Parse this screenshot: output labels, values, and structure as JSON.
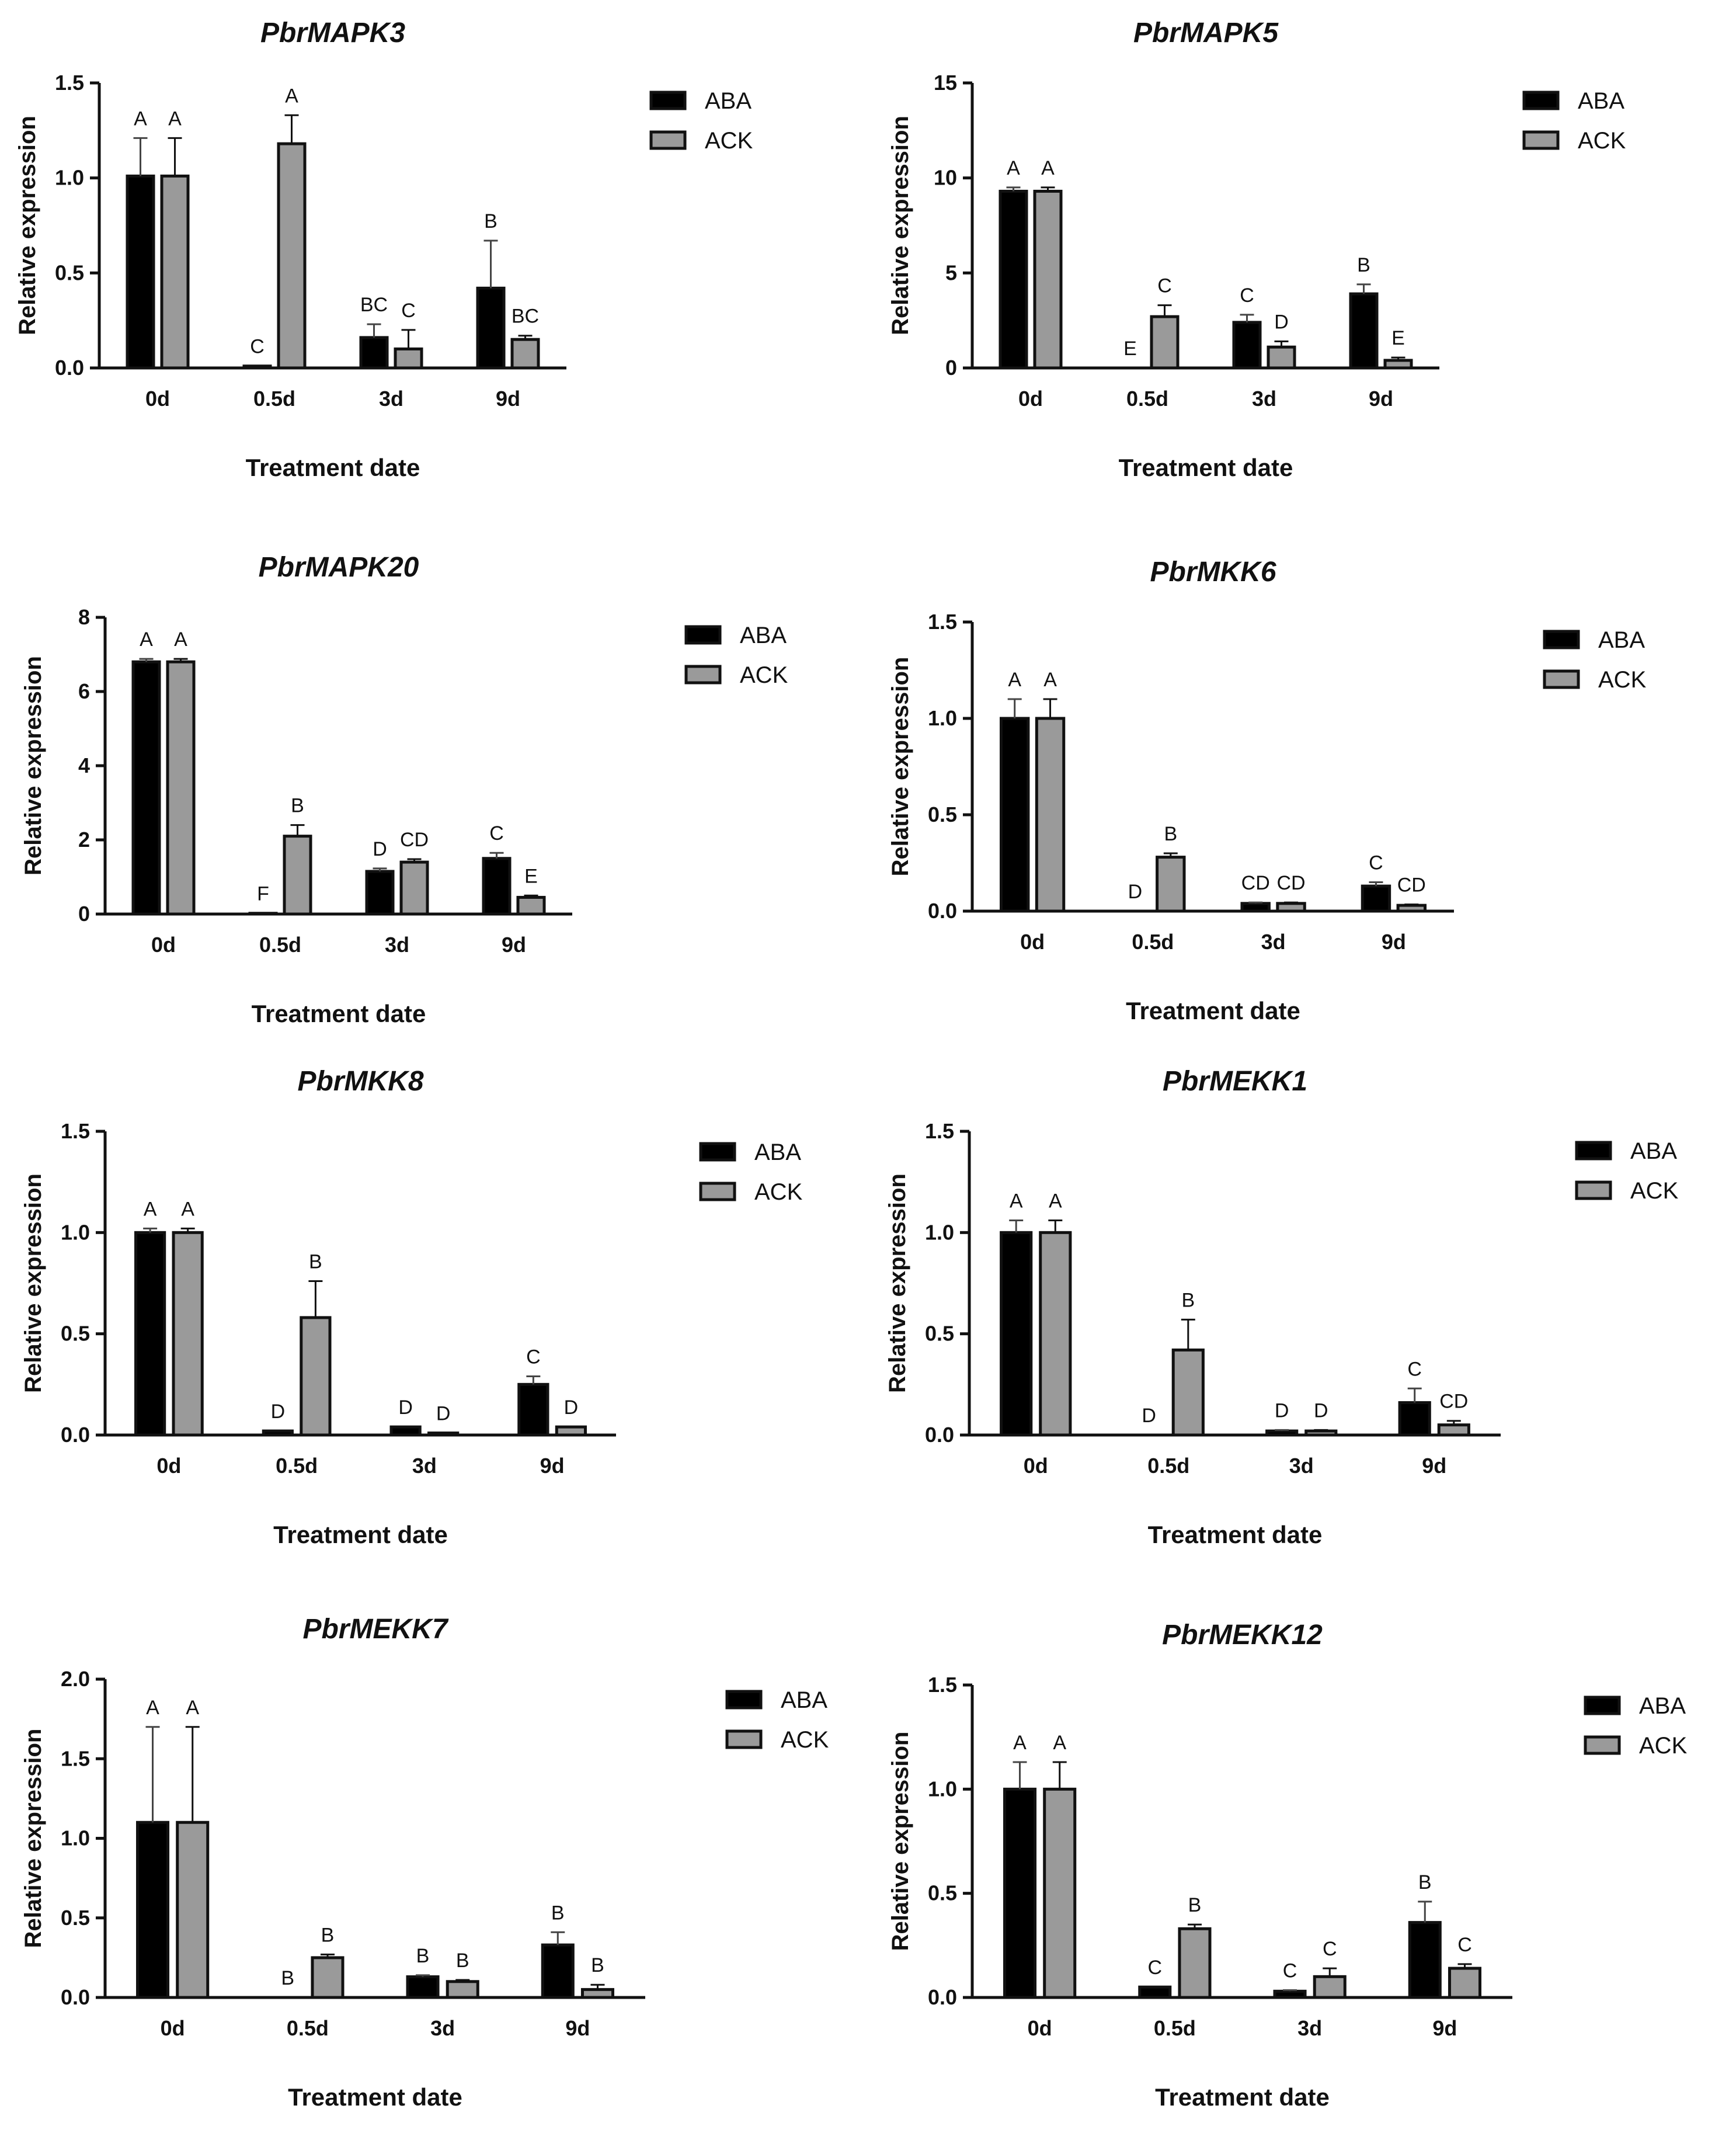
{
  "colors": {
    "aba": "#000000",
    "ack": "#9a9a9a",
    "axis": "#111111",
    "text": "#111111"
  },
  "chart_data": [
    {
      "type": "bar",
      "title": "PbrMAPK3",
      "xlabel": "Treatment date",
      "ylabel": "Relative expression",
      "categories": [
        "0d",
        "0.5d",
        "3d",
        "9d"
      ],
      "ylim": [
        0,
        1.5
      ],
      "yticks": [
        "0.0",
        "0.5",
        "1.0",
        "1.5"
      ],
      "series": [
        {
          "name": "ABA",
          "values": [
            1.01,
            0.01,
            0.16,
            0.42
          ],
          "errors": [
            0.2,
            0.0,
            0.07,
            0.25
          ],
          "letters": [
            "A",
            "C",
            "BC",
            "B"
          ]
        },
        {
          "name": "ACK",
          "values": [
            1.01,
            1.18,
            0.1,
            0.15
          ],
          "errors": [
            0.2,
            0.15,
            0.1,
            0.02
          ],
          "letters": [
            "A",
            "A",
            "C",
            "BC"
          ]
        }
      ],
      "legend": [
        "ABA",
        "ACK"
      ]
    },
    {
      "type": "bar",
      "title": "PbrMAPK5",
      "xlabel": "Treatment date",
      "ylabel": "Relative expression",
      "categories": [
        "0d",
        "0.5d",
        "3d",
        "9d"
      ],
      "ylim": [
        0,
        15
      ],
      "yticks": [
        "0",
        "5",
        "10",
        "15"
      ],
      "series": [
        {
          "name": "ABA",
          "values": [
            9.3,
            0.0,
            2.4,
            3.9
          ],
          "errors": [
            0.2,
            0.0,
            0.4,
            0.5
          ],
          "letters": [
            "A",
            "E",
            "C",
            "B"
          ]
        },
        {
          "name": "ACK",
          "values": [
            9.3,
            2.7,
            1.1,
            0.4
          ],
          "errors": [
            0.2,
            0.6,
            0.3,
            0.15
          ],
          "letters": [
            "A",
            "C",
            "D",
            "E"
          ]
        }
      ],
      "legend": [
        "ABA",
        "ACK"
      ]
    },
    {
      "type": "bar",
      "title": "PbrMAPK20",
      "xlabel": "Treatment date",
      "ylabel": "Relative expression",
      "categories": [
        "0d",
        "0.5d",
        "3d",
        "9d"
      ],
      "ylim": [
        0,
        8
      ],
      "yticks": [
        "0",
        "2",
        "4",
        "6",
        "8"
      ],
      "series": [
        {
          "name": "ABA",
          "values": [
            6.8,
            0.02,
            1.15,
            1.5
          ],
          "errors": [
            0.08,
            0.0,
            0.08,
            0.15
          ],
          "letters": [
            "A",
            "F",
            "D",
            "C"
          ]
        },
        {
          "name": "ACK",
          "values": [
            6.8,
            2.1,
            1.4,
            0.45
          ],
          "errors": [
            0.08,
            0.3,
            0.08,
            0.05
          ],
          "letters": [
            "A",
            "B",
            "CD",
            "E"
          ]
        }
      ],
      "legend": [
        "ABA",
        "ACK"
      ]
    },
    {
      "type": "bar",
      "title": "PbrMKK6",
      "xlabel": "Treatment date",
      "ylabel": "Relative expression",
      "categories": [
        "0d",
        "0.5d",
        "3d",
        "9d"
      ],
      "ylim": [
        0,
        1.5
      ],
      "yticks": [
        "0.0",
        "0.5",
        "1.0",
        "1.5"
      ],
      "series": [
        {
          "name": "ABA",
          "values": [
            1.0,
            0.0,
            0.04,
            0.13
          ],
          "errors": [
            0.1,
            0.0,
            0.005,
            0.02
          ],
          "letters": [
            "A",
            "D",
            "CD",
            "C"
          ]
        },
        {
          "name": "ACK",
          "values": [
            1.0,
            0.28,
            0.04,
            0.03
          ],
          "errors": [
            0.1,
            0.02,
            0.005,
            0.005
          ],
          "letters": [
            "A",
            "B",
            "CD",
            "CD"
          ]
        }
      ],
      "legend": [
        "ABA",
        "ACK"
      ]
    },
    {
      "type": "bar",
      "title": "PbrMKK8",
      "xlabel": "Treatment date",
      "ylabel": "Relative expression",
      "categories": [
        "0d",
        "0.5d",
        "3d",
        "9d"
      ],
      "ylim": [
        0,
        1.5
      ],
      "yticks": [
        "0.0",
        "0.5",
        "1.0",
        "1.5"
      ],
      "series": [
        {
          "name": "ABA",
          "values": [
            1.0,
            0.02,
            0.04,
            0.25
          ],
          "errors": [
            0.02,
            0.0,
            0.0,
            0.04
          ],
          "letters": [
            "A",
            "D",
            "D",
            "C"
          ]
        },
        {
          "name": "ACK",
          "values": [
            1.0,
            0.58,
            0.01,
            0.04
          ],
          "errors": [
            0.02,
            0.18,
            0.0,
            0.0
          ],
          "letters": [
            "A",
            "B",
            "D",
            "D"
          ]
        }
      ],
      "legend": [
        "ABA",
        "ACK"
      ]
    },
    {
      "type": "bar",
      "title": "PbrMEKK1",
      "xlabel": "Treatment date",
      "ylabel": "Relative expression",
      "categories": [
        "0d",
        "0.5d",
        "3d",
        "9d"
      ],
      "ylim": [
        0,
        1.5
      ],
      "yticks": [
        "0.0",
        "0.5",
        "1.0",
        "1.5"
      ],
      "series": [
        {
          "name": "ABA",
          "values": [
            1.0,
            0.0,
            0.02,
            0.16
          ],
          "errors": [
            0.06,
            0.0,
            0.005,
            0.07
          ],
          "letters": [
            "A",
            "D",
            "D",
            "C"
          ]
        },
        {
          "name": "ACK",
          "values": [
            1.0,
            0.42,
            0.02,
            0.05
          ],
          "errors": [
            0.06,
            0.15,
            0.005,
            0.02
          ],
          "letters": [
            "A",
            "B",
            "D",
            "CD"
          ]
        }
      ],
      "legend": [
        "ABA",
        "ACK"
      ]
    },
    {
      "type": "bar",
      "title": "PbrMEKK7",
      "xlabel": "Treatment date",
      "ylabel": "Relative expression",
      "categories": [
        "0d",
        "0.5d",
        "3d",
        "9d"
      ],
      "ylim": [
        0,
        2.0
      ],
      "yticks": [
        "0.0",
        "0.5",
        "1.0",
        "1.5",
        "2.0"
      ],
      "series": [
        {
          "name": "ABA",
          "values": [
            1.1,
            0.0,
            0.13,
            0.33
          ],
          "errors": [
            0.6,
            0.0,
            0.01,
            0.08
          ],
          "letters": [
            "A",
            "B",
            "B",
            "B"
          ]
        },
        {
          "name": "ACK",
          "values": [
            1.1,
            0.25,
            0.1,
            0.05
          ],
          "errors": [
            0.6,
            0.02,
            0.01,
            0.03
          ],
          "letters": [
            "A",
            "B",
            "B",
            "B"
          ]
        }
      ],
      "legend": [
        "ABA",
        "ACK"
      ]
    },
    {
      "type": "bar",
      "title": "PbrMEKK12",
      "xlabel": "Treatment date",
      "ylabel": "Relative expression",
      "categories": [
        "0d",
        "0.5d",
        "3d",
        "9d"
      ],
      "ylim": [
        0,
        1.5
      ],
      "yticks": [
        "0.0",
        "0.5",
        "1.0",
        "1.5"
      ],
      "series": [
        {
          "name": "ABA",
          "values": [
            1.0,
            0.05,
            0.03,
            0.36
          ],
          "errors": [
            0.13,
            0.0,
            0.005,
            0.1
          ],
          "letters": [
            "A",
            "C",
            "C",
            "B"
          ]
        },
        {
          "name": "ACK",
          "values": [
            1.0,
            0.33,
            0.1,
            0.14
          ],
          "errors": [
            0.13,
            0.02,
            0.04,
            0.02
          ],
          "letters": [
            "A",
            "B",
            "C",
            "C"
          ]
        }
      ],
      "legend": [
        "ABA",
        "ACK"
      ]
    }
  ]
}
